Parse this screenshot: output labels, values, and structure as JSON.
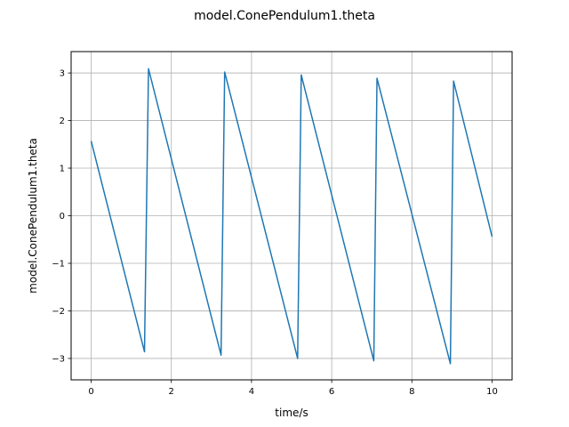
{
  "chart_data": {
    "type": "line",
    "title": "model.ConePendulum1.theta",
    "xlabel": "time/s",
    "ylabel": "model.ConePendulum1.theta",
    "xlim": [
      -0.5,
      10.5
    ],
    "ylim": [
      -3.45,
      3.45
    ],
    "xticks": [
      0,
      2,
      4,
      6,
      8,
      10
    ],
    "yticks": [
      -3,
      -2,
      -1,
      0,
      1,
      2,
      3
    ],
    "xtick_labels": [
      "0",
      "2",
      "4",
      "6",
      "8",
      "10"
    ],
    "ytick_labels": [
      "−3",
      "−2",
      "−1",
      "0",
      "1",
      "2",
      "3"
    ],
    "grid": true,
    "series": [
      {
        "color": "#1f77b4",
        "x": [
          0,
          1.33,
          1.43,
          3.24,
          3.33,
          5.15,
          5.24,
          7.05,
          7.13,
          8.96,
          9.04,
          10.0
        ],
        "y": [
          1.57,
          -2.86,
          3.09,
          -2.93,
          3.02,
          -3.0,
          2.96,
          -3.05,
          2.89,
          -3.11,
          2.83,
          -0.44
        ]
      }
    ]
  }
}
